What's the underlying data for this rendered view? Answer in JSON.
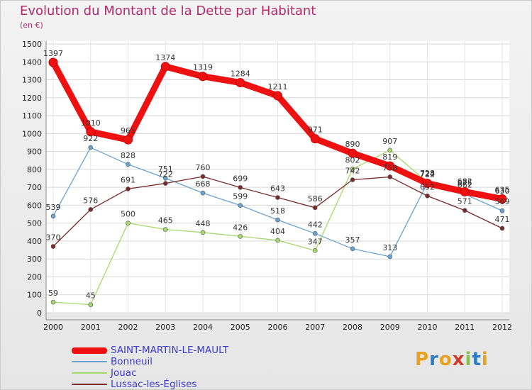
{
  "header": {
    "title": "Evolution du Montant de la Dette par Habitant",
    "subtitle": "(en €)"
  },
  "logo": {
    "letters": [
      "P",
      "r",
      "o",
      "x",
      "i",
      "t",
      "i"
    ],
    "colors": [
      "#e8a221",
      "#2d7fc1",
      "#e8a221",
      "#d23b2a",
      "#88c245",
      "#2d7fc1",
      "#e8a221"
    ]
  },
  "chart_data": {
    "type": "line",
    "title": "Evolution du Montant de la Dette par Habitant",
    "subtitle": "(en €)",
    "x": [
      "2000",
      "2001",
      "2002",
      "2003",
      "2004",
      "2005",
      "2006",
      "2007",
      "2008",
      "2009",
      "2010",
      "2011",
      "2012"
    ],
    "ylim": [
      0,
      1500
    ],
    "yticks": [
      0,
      100,
      200,
      300,
      400,
      500,
      600,
      700,
      800,
      900,
      1000,
      1100,
      1200,
      1300,
      1400,
      1500
    ],
    "grid": true,
    "legend_position": "bottom-left",
    "series": [
      {
        "name": "SAINT-MARTIN-LE-MAULT",
        "color": "#ee1111",
        "values": [
          1397,
          1010,
          965,
          1374,
          1319,
          1284,
          1211,
          971,
          890,
          819,
          722,
          675,
          635
        ],
        "labels": [
          "1397",
          "1010",
          "965",
          "1374",
          "1319",
          "1284",
          "1211",
          "971",
          "890",
          "819",
          "722",
          "675",
          "635"
        ]
      },
      {
        "name": "Bonneuil",
        "color": "#6aa3d0",
        "values": [
          539,
          922,
          828,
          751,
          668,
          599,
          518,
          442,
          357,
          313,
          724,
          662,
          569
        ],
        "labels": [
          "539",
          "922",
          "828",
          "751",
          "668",
          "599",
          "518",
          "442",
          "357",
          "313",
          "724",
          "662",
          "569"
        ]
      },
      {
        "name": "Jouac",
        "color": "#a6d96a",
        "values": [
          59,
          45,
          500,
          465,
          448,
          426,
          404,
          347,
          802,
          907,
          728,
          682,
          630
        ],
        "labels": [
          "59",
          "45",
          "500",
          "465",
          "448",
          "426",
          "404",
          "347",
          "802",
          "907",
          "728",
          "682",
          "630"
        ]
      },
      {
        "name": "Lussac-les-Églises",
        "color": "#7a2a2a",
        "values": [
          370,
          576,
          691,
          722,
          760,
          699,
          643,
          586,
          742,
          758,
          652,
          571,
          471
        ],
        "labels": [
          "370",
          "576",
          "691",
          "722",
          "760",
          "699",
          "643",
          "586",
          "742",
          "758",
          "652",
          "571",
          "471"
        ]
      }
    ]
  }
}
